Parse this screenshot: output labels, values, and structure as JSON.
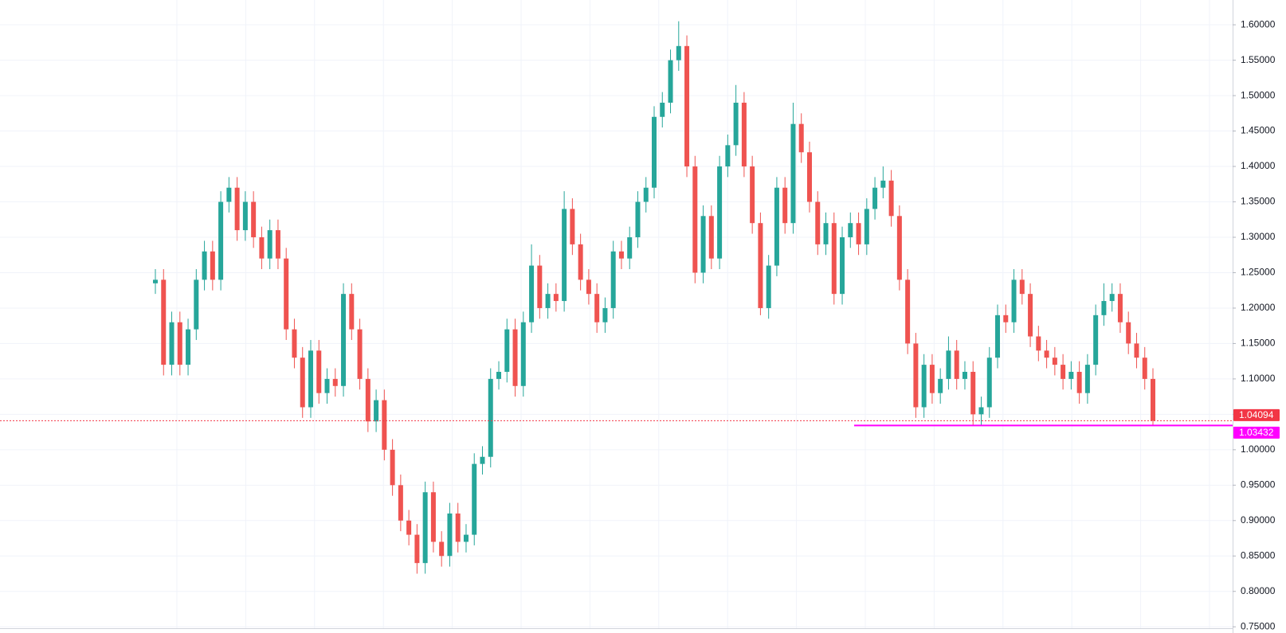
{
  "chart_data": {
    "type": "candlestick",
    "up_color": "#26a69a",
    "down_color": "#ef5350",
    "grid": true,
    "ylim": [
      0.748,
      1.635
    ],
    "yticks": [
      {
        "value": 0.75,
        "label": "0.75000"
      },
      {
        "value": 0.8,
        "label": "0.80000"
      },
      {
        "value": 0.85,
        "label": "0.85000"
      },
      {
        "value": 0.9,
        "label": "0.90000"
      },
      {
        "value": 0.95,
        "label": "0.95000"
      },
      {
        "value": 1.0,
        "label": "1.00000"
      },
      {
        "value": 1.05,
        "label": "1.05000"
      },
      {
        "value": 1.1,
        "label": "1.10000"
      },
      {
        "value": 1.15,
        "label": "1.15000"
      },
      {
        "value": 1.2,
        "label": "1.20000"
      },
      {
        "value": 1.25,
        "label": "1.25000"
      },
      {
        "value": 1.3,
        "label": "1.30000"
      },
      {
        "value": 1.35,
        "label": "1.35000"
      },
      {
        "value": 1.4,
        "label": "1.40000"
      },
      {
        "value": 1.45,
        "label": "1.45000"
      },
      {
        "value": 1.5,
        "label": "1.50000"
      },
      {
        "value": 1.55,
        "label": "1.55000"
      },
      {
        "value": 1.6,
        "label": "1.60000"
      }
    ],
    "price_lines": [
      {
        "value": 1.04094,
        "color": "#f23645",
        "style": "dotted"
      },
      {
        "value": 1.03432,
        "color": "#ff00ff",
        "style": "solid"
      }
    ],
    "open": [
      1.235,
      1.24,
      1.12,
      1.18,
      1.12,
      1.17,
      1.24,
      1.28,
      1.24,
      1.35,
      1.37,
      1.31,
      1.35,
      1.3,
      1.27,
      1.31,
      1.27,
      1.17,
      1.13,
      1.06,
      1.14,
      1.08,
      1.1,
      1.09,
      1.22,
      1.17,
      1.1,
      1.04,
      1.07,
      1.0,
      0.95,
      0.9,
      0.88,
      0.84,
      0.94,
      0.87,
      0.85,
      0.91,
      0.87,
      0.88,
      0.98,
      0.99,
      1.1,
      1.11,
      1.17,
      1.09,
      1.18,
      1.26,
      1.2,
      1.22,
      1.21,
      1.34,
      1.29,
      1.24,
      1.22,
      1.18,
      1.2,
      1.28,
      1.27,
      1.3,
      1.35,
      1.37,
      1.47,
      1.49,
      1.55,
      1.57,
      1.4,
      1.25,
      1.33,
      1.27,
      1.4,
      1.43,
      1.49,
      1.4,
      1.32,
      1.2,
      1.26,
      1.37,
      1.32,
      1.46,
      1.42,
      1.35,
      1.29,
      1.32,
      1.22,
      1.3,
      1.32,
      1.29,
      1.34,
      1.37,
      1.38,
      1.33,
      1.24,
      1.15,
      1.06,
      1.12,
      1.08,
      1.1,
      1.14,
      1.1,
      1.11,
      1.05,
      1.06,
      1.13,
      1.19,
      1.18,
      1.24,
      1.22,
      1.16,
      1.14,
      1.13,
      1.12,
      1.1,
      1.11,
      1.08,
      1.12,
      1.19,
      1.21,
      1.22,
      1.18,
      1.15,
      1.13,
      1.1
    ],
    "high": [
      1.255,
      1.255,
      1.195,
      1.195,
      1.185,
      1.255,
      1.295,
      1.295,
      1.365,
      1.385,
      1.385,
      1.365,
      1.365,
      1.315,
      1.325,
      1.325,
      1.285,
      1.185,
      1.145,
      1.155,
      1.155,
      1.115,
      1.115,
      1.235,
      1.235,
      1.185,
      1.115,
      1.085,
      1.085,
      1.015,
      0.965,
      0.915,
      0.895,
      0.955,
      0.955,
      0.885,
      0.925,
      0.925,
      0.895,
      0.995,
      1.005,
      1.115,
      1.125,
      1.185,
      1.185,
      1.195,
      1.29,
      1.275,
      1.235,
      1.235,
      1.365,
      1.355,
      1.305,
      1.255,
      1.235,
      1.215,
      1.295,
      1.295,
      1.315,
      1.365,
      1.385,
      1.485,
      1.505,
      1.565,
      1.605,
      1.585,
      1.415,
      1.345,
      1.345,
      1.415,
      1.445,
      1.515,
      1.505,
      1.415,
      1.335,
      1.275,
      1.385,
      1.385,
      1.49,
      1.475,
      1.435,
      1.365,
      1.335,
      1.335,
      1.315,
      1.335,
      1.335,
      1.355,
      1.385,
      1.4,
      1.395,
      1.345,
      1.255,
      1.165,
      1.135,
      1.135,
      1.115,
      1.16,
      1.155,
      1.125,
      1.125,
      1.075,
      1.145,
      1.205,
      1.205,
      1.255,
      1.255,
      1.235,
      1.175,
      1.155,
      1.145,
      1.135,
      1.125,
      1.125,
      1.135,
      1.205,
      1.235,
      1.235,
      1.235,
      1.195,
      1.165,
      1.145,
      1.115
    ],
    "low": [
      1.22,
      1.105,
      1.105,
      1.105,
      1.105,
      1.155,
      1.225,
      1.225,
      1.225,
      1.335,
      1.295,
      1.295,
      1.285,
      1.255,
      1.255,
      1.255,
      1.155,
      1.115,
      1.045,
      1.045,
      1.065,
      1.065,
      1.075,
      1.075,
      1.155,
      1.085,
      1.025,
      1.025,
      0.985,
      0.935,
      0.885,
      0.865,
      0.825,
      0.825,
      0.855,
      0.835,
      0.835,
      0.855,
      0.855,
      0.865,
      0.965,
      0.975,
      1.085,
      1.095,
      1.075,
      1.075,
      1.165,
      1.185,
      1.185,
      1.195,
      1.195,
      1.275,
      1.225,
      1.205,
      1.165,
      1.165,
      1.185,
      1.255,
      1.255,
      1.285,
      1.335,
      1.355,
      1.455,
      1.475,
      1.535,
      1.385,
      1.235,
      1.235,
      1.255,
      1.255,
      1.385,
      1.415,
      1.385,
      1.305,
      1.19,
      1.185,
      1.245,
      1.305,
      1.305,
      1.405,
      1.335,
      1.275,
      1.275,
      1.205,
      1.205,
      1.285,
      1.275,
      1.275,
      1.325,
      1.355,
      1.315,
      1.225,
      1.135,
      1.045,
      1.045,
      1.065,
      1.065,
      1.085,
      1.085,
      1.085,
      1.035,
      1.035,
      1.045,
      1.115,
      1.165,
      1.165,
      1.205,
      1.145,
      1.125,
      1.115,
      1.105,
      1.085,
      1.085,
      1.065,
      1.065,
      1.105,
      1.175,
      1.195,
      1.165,
      1.135,
      1.115,
      1.085,
      1.03432
    ],
    "close": [
      1.24,
      1.12,
      1.18,
      1.12,
      1.17,
      1.24,
      1.28,
      1.24,
      1.35,
      1.37,
      1.31,
      1.35,
      1.3,
      1.27,
      1.31,
      1.27,
      1.17,
      1.13,
      1.06,
      1.14,
      1.08,
      1.1,
      1.09,
      1.22,
      1.17,
      1.1,
      1.04,
      1.07,
      1.0,
      0.95,
      0.9,
      0.88,
      0.84,
      0.94,
      0.87,
      0.85,
      0.91,
      0.87,
      0.88,
      0.98,
      0.99,
      1.1,
      1.11,
      1.17,
      1.09,
      1.18,
      1.26,
      1.2,
      1.22,
      1.21,
      1.34,
      1.29,
      1.24,
      1.22,
      1.18,
      1.2,
      1.28,
      1.27,
      1.3,
      1.35,
      1.37,
      1.47,
      1.49,
      1.55,
      1.57,
      1.4,
      1.25,
      1.33,
      1.27,
      1.4,
      1.43,
      1.49,
      1.4,
      1.32,
      1.2,
      1.26,
      1.37,
      1.32,
      1.46,
      1.42,
      1.35,
      1.29,
      1.32,
      1.22,
      1.3,
      1.32,
      1.29,
      1.34,
      1.37,
      1.38,
      1.33,
      1.24,
      1.15,
      1.06,
      1.12,
      1.08,
      1.1,
      1.14,
      1.1,
      1.11,
      1.05,
      1.06,
      1.13,
      1.19,
      1.18,
      1.24,
      1.22,
      1.16,
      1.14,
      1.13,
      1.12,
      1.1,
      1.11,
      1.08,
      1.12,
      1.19,
      1.21,
      1.22,
      1.18,
      1.15,
      1.13,
      1.1,
      1.04094
    ]
  }
}
